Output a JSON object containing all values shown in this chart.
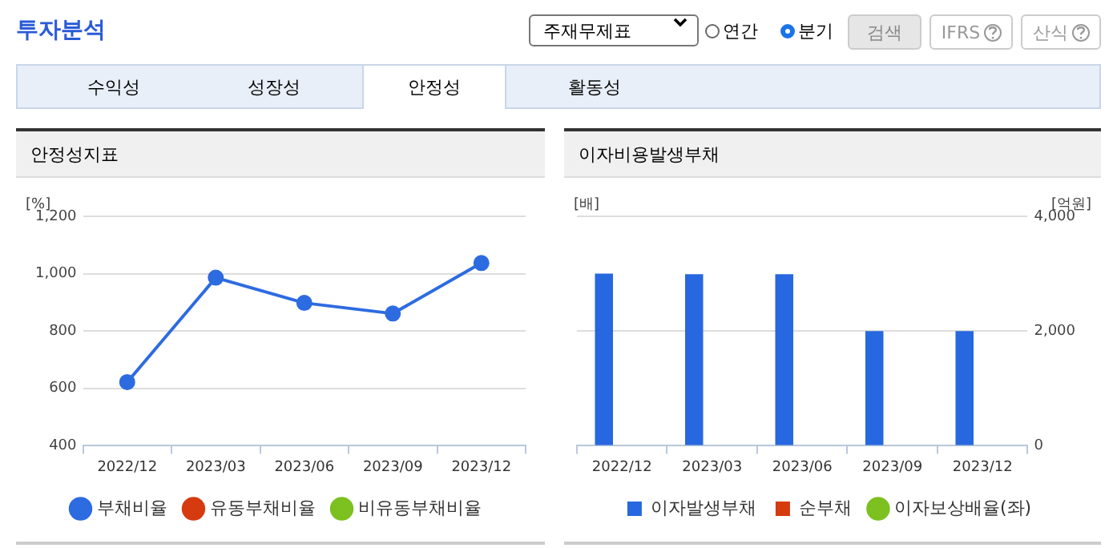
{
  "chart_data": [
    {
      "type": "other",
      "title": "투자분석",
      "annotations": [
        "주재무제표",
        "연간",
        "분기",
        "검색",
        "IFRS",
        "산식",
        "수익성",
        "성장성",
        "안정성",
        "활동성"
      ]
    },
    {
      "type": "line",
      "title": "안정성지표",
      "ylabel": "[%]",
      "categories": [
        "2022/12",
        "2023/03",
        "2023/06",
        "2023/09",
        "2023/12"
      ],
      "series": [
        {
          "name": "부채비율",
          "color": "#2d6be0",
          "values": [
            622,
            986,
            898,
            861,
            1037
          ]
        },
        {
          "name": "유동부채비율",
          "color": "#d63a0f",
          "values": [
            null,
            null,
            null,
            null,
            null
          ]
        },
        {
          "name": "비유동부채비율",
          "color": "#7cc11f",
          "values": [
            null,
            null,
            null,
            null,
            null
          ]
        }
      ],
      "ylim": [
        400,
        1200
      ],
      "yticks": [
        400,
        600,
        800,
        {
          "value": 1000,
          "label": "1,000"
        },
        {
          "value": 1200,
          "label": "1,200"
        }
      ],
      "grid": "y",
      "legend": "bottom",
      "marker": "circle"
    },
    {
      "type": "bar",
      "title": "이자비용발생부채",
      "ylabel": "[배]",
      "y2label": "[억원]",
      "categories": [
        "2022/12",
        "2023/03",
        "2023/06",
        "2023/09",
        "2023/12"
      ],
      "series": [
        {
          "name": "이자발생부채",
          "color": "#2767e0",
          "values": [
            3000,
            2990,
            2990,
            2000,
            2000
          ],
          "axis": "y2"
        },
        {
          "name": "순부채",
          "color": "#d63a0f",
          "values": [
            null,
            null,
            null,
            null,
            null
          ],
          "axis": "y2"
        },
        {
          "name": "이자보상배율(좌)",
          "type": "line",
          "color": "#7cc11f",
          "values": [
            null,
            null,
            null,
            null,
            null
          ]
        }
      ],
      "y2lim": [
        0,
        4000
      ],
      "y2ticks": [
        0,
        {
          "value": 2000,
          "label": "2,000"
        },
        {
          "value": 4000,
          "label": "4,000"
        }
      ],
      "grid": "y",
      "legend": "bottom",
      "marker": "circle"
    }
  ]
}
